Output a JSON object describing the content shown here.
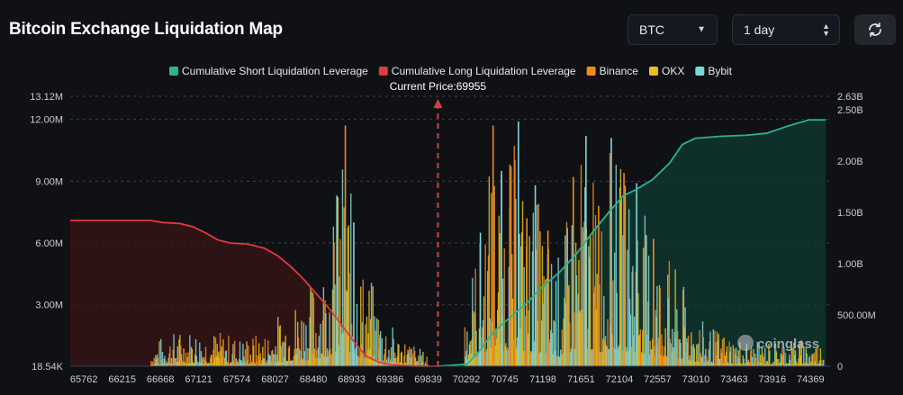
{
  "header": {
    "title": "Bitcoin Exchange Liquidation Map",
    "symbol_select": "BTC",
    "range_select": "1 day",
    "refresh_icon": "refresh-icon"
  },
  "colors": {
    "short_cum": "#2bb393",
    "long_cum": "#e03a3a",
    "binance": "#f08a1e",
    "okx": "#e8c01a",
    "bybit": "#7fd6d8",
    "background": "#0f1115",
    "price_line": "#e03a3a"
  },
  "watermark": "coinglass",
  "chart_data": {
    "type": "bar",
    "current_price_label": "Current Price:69955",
    "current_price": 69955,
    "xlim": [
      65600,
      74600
    ],
    "x_ticks": [
      65762,
      66215,
      66668,
      67121,
      67574,
      68027,
      68480,
      68933,
      69386,
      69839,
      70292,
      70745,
      71198,
      71651,
      72104,
      72557,
      73010,
      73463,
      73916,
      74369
    ],
    "y_left": {
      "range": [
        18540,
        13120000
      ],
      "ticks": [
        {
          "v": 18540,
          "label": "18.54K"
        },
        {
          "v": 3000000,
          "label": "3.00M"
        },
        {
          "v": 6000000,
          "label": "6.00M"
        },
        {
          "v": 9000000,
          "label": "9.00M"
        },
        {
          "v": 12000000,
          "label": "12.00M"
        },
        {
          "v": 13120000,
          "label": "13.12M"
        }
      ]
    },
    "y_right": {
      "range": [
        0,
        2630000000
      ],
      "ticks": [
        {
          "v": 0,
          "label": "0"
        },
        {
          "v": 500000000,
          "label": "500.00M"
        },
        {
          "v": 1000000000,
          "label": "1.00B"
        },
        {
          "v": 1500000000,
          "label": "1.50B"
        },
        {
          "v": 2000000000,
          "label": "2.00B"
        },
        {
          "v": 2500000000,
          "label": "2.50B"
        },
        {
          "v": 2630000000,
          "label": "2.63B"
        }
      ]
    },
    "legend": [
      {
        "name": "Cumulative Short Liquidation Leverage",
        "key": "short_cum"
      },
      {
        "name": "Cumulative Long Liquidation Leverage",
        "key": "long_cum"
      },
      {
        "name": "Binance",
        "key": "binance"
      },
      {
        "name": "OKX",
        "key": "okx"
      },
      {
        "name": "Bybit",
        "key": "bybit"
      }
    ],
    "cumulative_long": {
      "x": [
        65600,
        66100,
        66550,
        66700,
        66900,
        67050,
        67200,
        67350,
        67500,
        67700,
        67900,
        68050,
        68200,
        68350,
        68500,
        68650,
        68800,
        68950,
        69100,
        69250,
        69400,
        69550,
        69700,
        69850,
        69955
      ],
      "y": [
        1420000000,
        1420000000,
        1420000000,
        1400000000,
        1390000000,
        1360000000,
        1300000000,
        1230000000,
        1200000000,
        1190000000,
        1150000000,
        1080000000,
        980000000,
        860000000,
        720000000,
        580000000,
        420000000,
        250000000,
        100000000,
        40000000,
        15000000,
        5000000,
        0,
        0,
        0
      ]
    },
    "cumulative_short": {
      "x": [
        69955,
        70300,
        70450,
        70600,
        70800,
        71000,
        71200,
        71400,
        71600,
        71800,
        72000,
        72150,
        72300,
        72500,
        72700,
        72850,
        73000,
        73300,
        73600,
        73850,
        74100,
        74350,
        74550
      ],
      "y": [
        0,
        20000000,
        150000000,
        320000000,
        470000000,
        610000000,
        780000000,
        920000000,
        1100000000,
        1320000000,
        1520000000,
        1660000000,
        1720000000,
        1820000000,
        1980000000,
        2160000000,
        2220000000,
        2240000000,
        2250000000,
        2270000000,
        2340000000,
        2400000000,
        2400000000
      ]
    },
    "exchange_peaks": {
      "x": [
        65900,
        66300,
        66700,
        67000,
        67300,
        67600,
        67900,
        68150,
        68400,
        68600,
        68750,
        68850,
        68950,
        69050,
        69200,
        69350,
        69500,
        69650,
        69800,
        70300,
        70450,
        70600,
        70700,
        70800,
        70900,
        71000,
        71100,
        71250,
        71400,
        71550,
        71700,
        71850,
        72000,
        72150,
        72300,
        72500,
        72700,
        72900,
        73100,
        73400,
        73700,
        74000,
        74300,
        74500
      ],
      "values": [
        0,
        0,
        1600000,
        1900000,
        1800000,
        1500000,
        1700000,
        3200000,
        3800000,
        5500000,
        8300000,
        11700000,
        7000000,
        5200000,
        3900000,
        2300000,
        1600000,
        1200000,
        700000,
        4300000,
        6500000,
        11700000,
        9500000,
        9800000,
        11900000,
        7200000,
        8800000,
        6600000,
        5400000,
        9200000,
        11200000,
        7800000,
        11100000,
        9400000,
        8900000,
        6200000,
        5300000,
        3600000,
        2100000,
        1600000,
        1200000,
        1300000,
        1400000,
        1200000
      ]
    }
  }
}
